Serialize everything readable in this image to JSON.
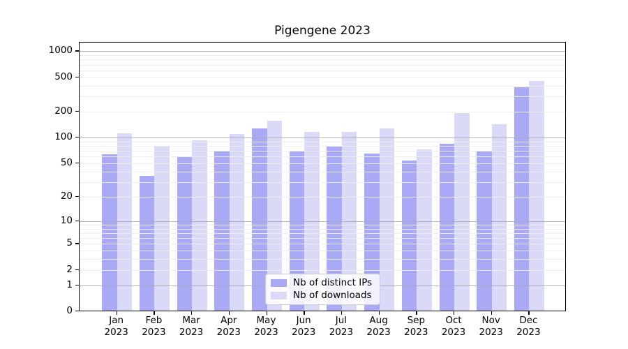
{
  "title": "Pigengene 2023",
  "colors": {
    "ips": "#a9a9f5",
    "downloads": "#dadaf8",
    "major_grid": "#a9a9b0",
    "minor_grid": "#ededf0",
    "axis": "#000000",
    "legend_border": "#cccccc",
    "legend_bg": "#ffffff"
  },
  "legend": {
    "items": [
      {
        "label": "Nb of distinct IPs",
        "series": "ips"
      },
      {
        "label": "Nb of downloads",
        "series": "downloads"
      }
    ],
    "position": "lower center"
  },
  "y_axis": {
    "tick_labels": [
      "1000",
      "500",
      "200",
      "100",
      "50",
      "20",
      "10",
      "5",
      "2",
      "1",
      "0"
    ]
  },
  "chart_data": {
    "type": "bar",
    "title": "Pigengene 2023",
    "categories": [
      "Jan 2023",
      "Feb 2023",
      "Mar 2023",
      "Apr 2023",
      "May 2023",
      "Jun 2023",
      "Jul 2023",
      "Aug 2023",
      "Sep 2023",
      "Oct 2023",
      "Nov 2023",
      "Dec 2023"
    ],
    "series": [
      {
        "name": "Nb of distinct IPs",
        "color_key": "ips",
        "values": [
          61,
          34,
          57,
          68,
          124,
          66,
          75,
          63,
          52,
          81,
          66,
          369
        ]
      },
      {
        "name": "Nb of downloads",
        "color_key": "downloads",
        "values": [
          108,
          77,
          90,
          106,
          150,
          111,
          112,
          123,
          70,
          186,
          138,
          438
        ]
      }
    ],
    "xlabel": "",
    "ylabel": "",
    "yscale": "log1p",
    "yticks": [
      0,
      1,
      2,
      5,
      10,
      20,
      50,
      100,
      200,
      500,
      1000
    ],
    "major_gridlines": [
      1,
      10,
      100,
      1000
    ],
    "ylim": [
      0,
      1200
    ],
    "grid": true,
    "legend_position": "lower center"
  }
}
